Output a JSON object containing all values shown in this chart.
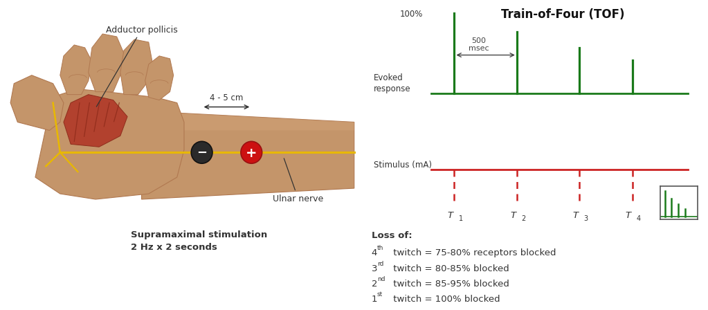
{
  "bg_color": "#ffffff",
  "chart_bg_color": "#e8e8e8",
  "title": "Train-of-Four (TOF)",
  "title_fontsize": 12,
  "title_fontweight": "bold",
  "evoked_label": "Evoked\nresponse",
  "stimulus_label": "Stimulus (mA)",
  "spacing_label": "500\nmsec",
  "green_color": "#1a7a1a",
  "red_color": "#cc2222",
  "t_subscripts": [
    "1",
    "2",
    "3",
    "4"
  ],
  "loss_of_title": "Loss of:",
  "loss_lines": [
    " twitch = 75-80% receptors blocked",
    " twitch = 80-85% blocked",
    " twitch = 85-95% blocked",
    " twitch = 100% blocked"
  ],
  "loss_superscripts": [
    "th",
    "rd",
    "nd",
    "st"
  ],
  "loss_numbers": [
    "4",
    "3",
    "2",
    "1"
  ],
  "adductor_label": "Adductor pollicis",
  "ulnar_label": "Ulnar nerve",
  "distance_label": "4 - 5 cm",
  "supramaximal_label": "Supramaximal stimulation\n2 Hz x 2 seconds",
  "skin_light": "#d4a57a",
  "skin_mid": "#c4956a",
  "skin_dark": "#b07850",
  "muscle_color": "#b03828",
  "muscle_dark": "#8a2818",
  "nerve_color": "#e8b800",
  "neg_elec_color": "#2a2a2a",
  "pos_elec_color": "#cc1111"
}
